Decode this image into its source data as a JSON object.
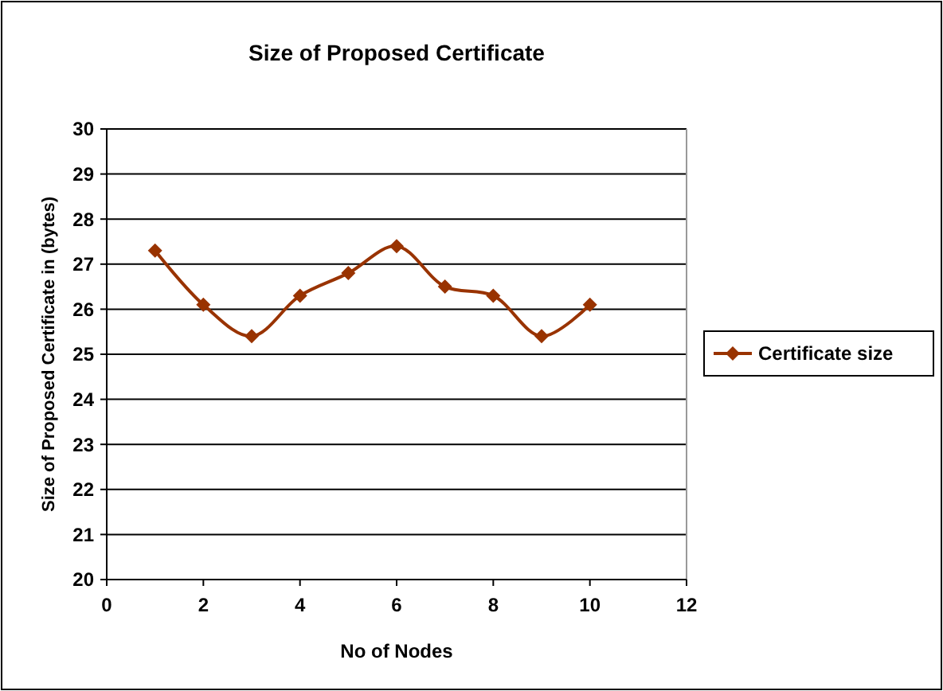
{
  "chart_data": {
    "type": "line",
    "title": "Size of Proposed Certificate",
    "xlabel": "No of Nodes",
    "ylabel": "Size of Proposed  Certificate in (bytes)",
    "x": [
      1,
      2,
      3,
      4,
      5,
      6,
      7,
      8,
      9,
      10
    ],
    "series": [
      {
        "name": "Certificate size",
        "color": "#993300",
        "values": [
          27.3,
          26.1,
          25.4,
          26.3,
          26.8,
          27.4,
          26.5,
          26.3,
          25.4,
          26.1
        ]
      }
    ],
    "xlim": [
      0,
      12
    ],
    "xticks": [
      0,
      2,
      4,
      6,
      8,
      10,
      12
    ],
    "ylim": [
      20,
      30
    ],
    "yticks": [
      20,
      21,
      22,
      23,
      24,
      25,
      26,
      27,
      28,
      29,
      30
    ],
    "grid": "y",
    "legend": "right",
    "marker": "diamond",
    "line_style": "solid"
  }
}
